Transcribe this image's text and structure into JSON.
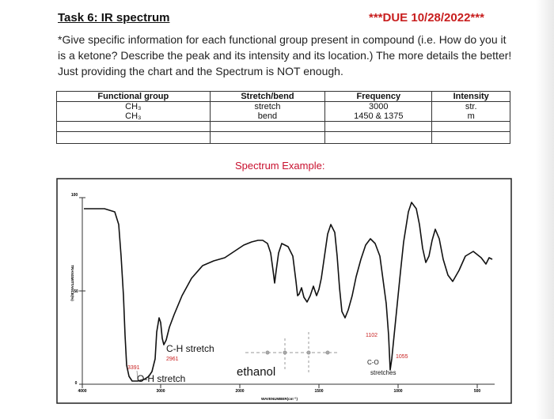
{
  "task_title": "Task 6: IR spectrum",
  "due": "***DUE 10/28/2022***",
  "instructions": "*Give specific information for each functional group present in compound (i.e. How do you it is a ketone? Describe the peak and its intensity and its location.) The more details the better! Just providing the chart and the Spectrum is NOT enough.",
  "table": {
    "headers": [
      "Functional group",
      "Stretch/bend",
      "Frequency",
      "Intensity"
    ],
    "rows": [
      [
        "CH₃",
        "stretch",
        "3000",
        "str."
      ],
      [
        "CH₃",
        "bend",
        "1450 & 1375",
        "m"
      ],
      [
        "",
        "",
        "",
        ""
      ],
      [
        "",
        "",
        "",
        ""
      ]
    ]
  },
  "spectrum_heading": "Spectrum Example:",
  "spectrum": {
    "y_axis_label": "TRANSMITTANCE(%)",
    "x_axis_label": "WAVENUMBER(cm⁻¹)",
    "y_ticks": [
      "100",
      "50",
      "0"
    ],
    "x_ticks": [
      "4000",
      "3000",
      "2000",
      "1500",
      "1000",
      "500"
    ],
    "compound": "ethanol",
    "annotations": {
      "oh_peak": "3391",
      "oh_label": "O-H stretch",
      "ch_label": "C-H stretch",
      "ch_peak": "2961",
      "co_peak_1": "1102",
      "co_peak_2": "1055",
      "co_label_1": "C-O",
      "co_label_2": "stretches"
    },
    "colors": {
      "annotation_red": "#c81e1e",
      "trace": "#111111"
    }
  }
}
